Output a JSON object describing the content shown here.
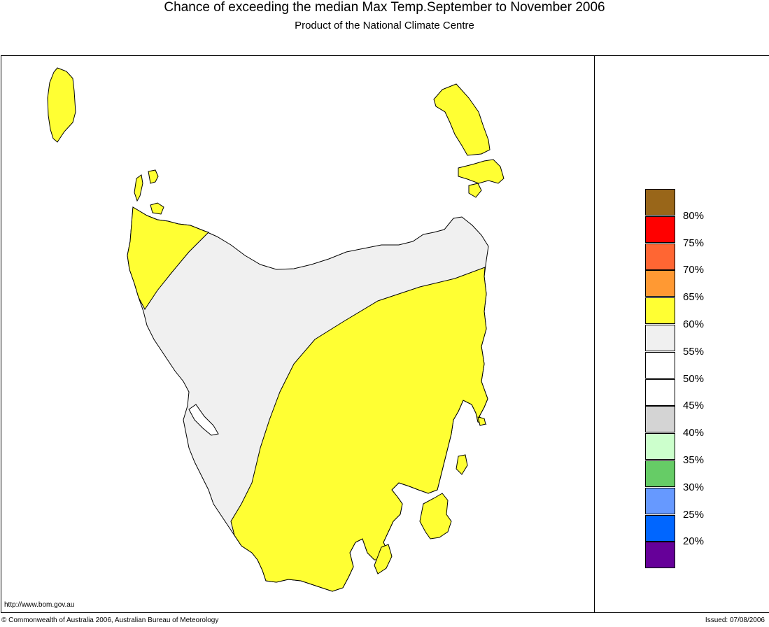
{
  "header": {
    "title": "Chance of exceeding the median Max Temp.September to November 2006",
    "subtitle": "Product of the National Climate Centre"
  },
  "map": {
    "region": "Tasmania",
    "land_outline_color": "#000000",
    "zones": [
      {
        "name": "60-65% zone",
        "color": "#ffff33"
      },
      {
        "name": "55-60% zone",
        "color": "#f0f0f0"
      }
    ]
  },
  "legend": {
    "items": [
      {
        "color": "#996619",
        "label": "80%"
      },
      {
        "color": "#ff0000",
        "label": "75%"
      },
      {
        "color": "#ff6633",
        "label": "70%"
      },
      {
        "color": "#ff9933",
        "label": "65%"
      },
      {
        "color": "#ffff33",
        "label": "60%"
      },
      {
        "color": "#f0f0f0",
        "label": "55%"
      },
      {
        "color": "#ffffff",
        "label": "50%"
      },
      {
        "color": "#ffffff",
        "label": "45%"
      },
      {
        "color": "#d4d4d4",
        "label": "40%"
      },
      {
        "color": "#ccffcc",
        "label": "35%"
      },
      {
        "color": "#66cc66",
        "label": "30%"
      },
      {
        "color": "#6699ff",
        "label": "25%"
      },
      {
        "color": "#0066ff",
        "label": "20%"
      },
      {
        "color": "#660099",
        "label": ""
      }
    ]
  },
  "footer": {
    "url": "http://www.bom.gov.au",
    "copyright": "© Commonwealth of Australia 2006, Australian Bureau of Meteorology",
    "issued": "Issued: 07/08/2006"
  }
}
